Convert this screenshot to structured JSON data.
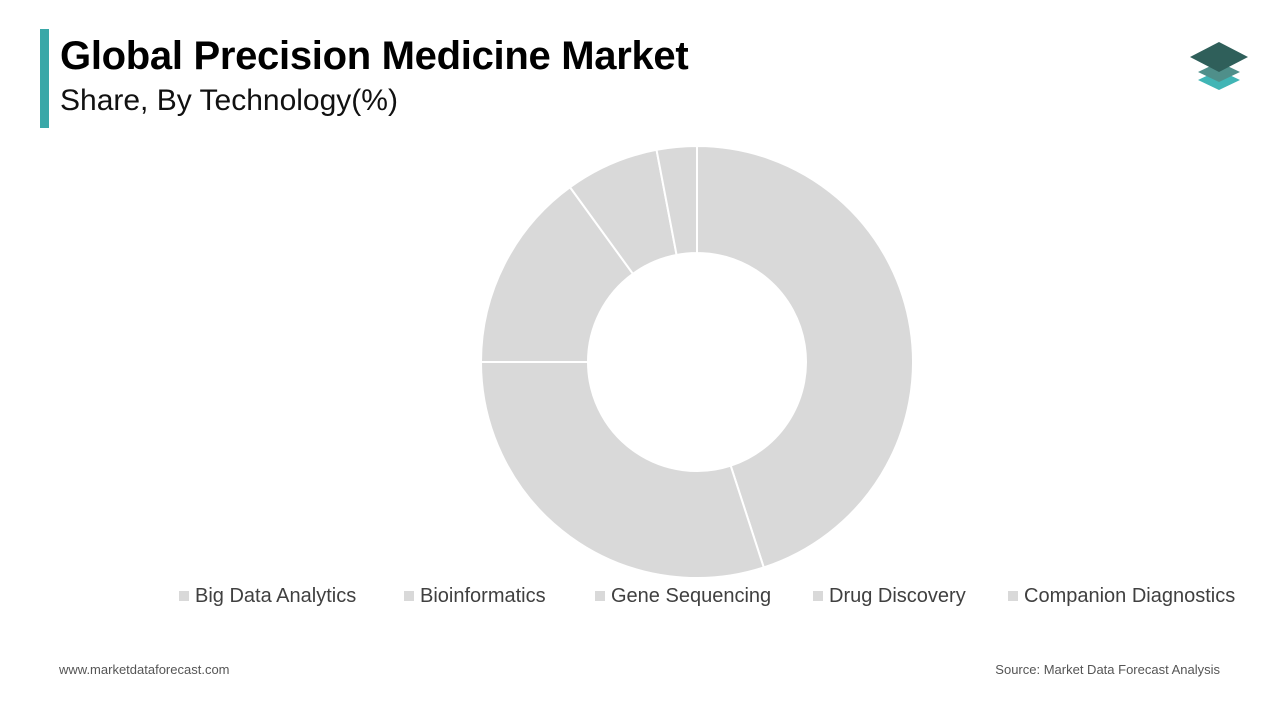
{
  "header": {
    "title": "Global Precision Medicine Market",
    "subtitle": "Share, By Technology(%)"
  },
  "logo": {
    "icon": "stacked-layers-logo-icon",
    "colors": [
      "#2f5f5a",
      "#4f8f8a",
      "#40b5b5"
    ]
  },
  "colors": {
    "accent": "#3aa8a8",
    "slice_fill": "#d9d9d9",
    "slice_stroke": "#ffffff"
  },
  "chart_data": {
    "type": "pie",
    "variant": "donut",
    "title": "Global Precision Medicine Market",
    "subtitle": "Share, By Technology(%)",
    "categories": [
      "Big Data Analytics",
      "Bioinformatics",
      "Gene Sequencing",
      "Drug Discovery",
      "Companion Diagnostics"
    ],
    "values": [
      45,
      30,
      15,
      7,
      3
    ],
    "legend_position": "bottom"
  },
  "footer": {
    "website": "www.marketdataforecast.com",
    "source": "Source: Market Data Forecast Analysis"
  }
}
